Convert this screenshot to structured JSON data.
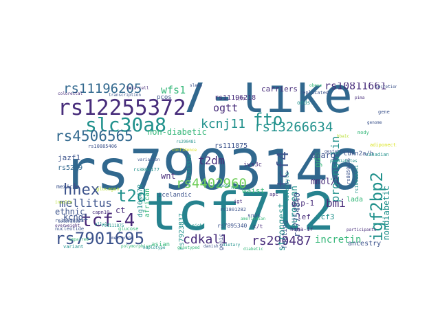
{
  "palette": {
    "dark_purple": "#472c7a",
    "purple": "#482878",
    "blue": "#3b528b",
    "steel_blue": "#31688e",
    "teal": "#21918c",
    "teal_blue": "#26828e",
    "green": "#35b779",
    "light_green": "#6ece58",
    "yellow_green": "#b5de2b",
    "yellow": "#d8e219"
  },
  "words": [
    {
      "text": "rs7903146",
      "color": "steel_blue"
    },
    {
      "text": "7-like",
      "color": "steel_blue"
    },
    {
      "text": "tcf7l2",
      "color": "teal_blue"
    },
    {
      "text": "rs12255372",
      "color": "dark_purple"
    },
    {
      "text": "slc30a8",
      "color": "teal"
    },
    {
      "text": "rs11196205",
      "color": "steel_blue"
    },
    {
      "text": "rs4506565",
      "color": "steel_blue"
    },
    {
      "text": "t2d",
      "color": "teal"
    },
    {
      "text": "tcf-4",
      "color": "purple"
    },
    {
      "text": "hhex",
      "color": "blue"
    },
    {
      "text": "mellitus",
      "color": "blue"
    },
    {
      "text": "rs7901695",
      "color": "blue"
    },
    {
      "text": "t2dm",
      "color": "dark_purple"
    },
    {
      "text": "kcnj11",
      "color": "teal"
    },
    {
      "text": "fto",
      "color": "teal"
    },
    {
      "text": "rs13266634",
      "color": "teal"
    },
    {
      "text": "rs4402960",
      "color": "light_green"
    },
    {
      "text": "cdkal1",
      "color": "dark_purple"
    },
    {
      "text": "rs290487",
      "color": "dark_purple"
    },
    {
      "text": "igf2bp2",
      "color": "teal"
    },
    {
      "text": "tcf4",
      "color": "blue"
    },
    {
      "text": "ogtt",
      "color": "dark_purple"
    },
    {
      "text": "wfs1",
      "color": "green"
    },
    {
      "text": "rs10811661",
      "color": "dark_purple"
    },
    {
      "text": "proinsulin",
      "color": "teal"
    },
    {
      "text": "nondiabetic",
      "color": "teal"
    },
    {
      "text": "bmi",
      "color": "dark_purple"
    },
    {
      "text": "incretin",
      "color": "green"
    },
    {
      "text": "european",
      "color": "teal"
    },
    {
      "text": "strongest",
      "color": "teal"
    },
    {
      "text": "rs7754840",
      "color": "blue"
    },
    {
      "text": "mmol/l",
      "color": "dark_purple"
    },
    {
      "text": "kcnq1",
      "color": "blue"
    },
    {
      "text": "non-diabetic",
      "color": "green"
    },
    {
      "text": "rs11196218",
      "color": "dark_purple"
    },
    {
      "text": "rs111875",
      "color": "blue"
    },
    {
      "text": "dg10s478",
      "color": "teal"
    },
    {
      "text": "wnt",
      "color": "dark_purple"
    },
    {
      "text": "gdm",
      "color": "green"
    },
    {
      "text": "pparg",
      "color": "blue"
    },
    {
      "text": "carriers",
      "color": "dark_purple"
    },
    {
      "text": "jazf1",
      "color": "blue"
    },
    {
      "text": "rs5219",
      "color": "steel_blue"
    },
    {
      "text": "ethnic",
      "color": "blue"
    },
    {
      "text": "ct",
      "color": "dark_purple"
    },
    {
      "text": "rs7923837",
      "color": "teal"
    },
    {
      "text": "fasting",
      "color": "blue"
    },
    {
      "text": "glp-1",
      "color": "dark_purple"
    },
    {
      "text": "lef",
      "color": "dark_purple"
    },
    {
      "text": "tcf3",
      "color": "teal"
    },
    {
      "text": "ancestry",
      "color": "blue"
    },
    {
      "text": "waist",
      "color": "green"
    },
    {
      "text": "lada",
      "color": "green"
    },
    {
      "text": "cdkn2a/b",
      "color": "blue"
    },
    {
      "text": "pcos",
      "color": "blue"
    },
    {
      "text": "african",
      "color": "green"
    },
    {
      "text": "mexican",
      "color": "blue"
    },
    {
      "text": "asian",
      "color": "green"
    },
    {
      "text": "insulinogenic",
      "color": "blue"
    },
    {
      "text": "ivs3c",
      "color": "dark_purple"
    },
    {
      "text": "homa-ir",
      "color": "dark_purple"
    },
    {
      "text": "rs7895340",
      "color": "blue"
    },
    {
      "text": "icelandic",
      "color": "blue"
    },
    {
      "text": "rs12243326",
      "color": "teal"
    },
    {
      "text": "snps",
      "color": "blue"
    },
    {
      "text": "c/t",
      "color": "dark_purple"
    },
    {
      "text": "odds",
      "color": "teal"
    },
    {
      "text": "replicated",
      "color": "blue"
    },
    {
      "text": "gene",
      "color": "blue"
    },
    {
      "text": "lifestyle",
      "color": "teal"
    },
    {
      "text": "rs8050136",
      "color": "blue"
    },
    {
      "text": "rs10010131",
      "color": "teal"
    },
    {
      "text": "rs1801282",
      "color": "blue"
    },
    {
      "text": "rs10830963",
      "color": "blue"
    },
    {
      "text": "rs10885406",
      "color": "blue"
    },
    {
      "text": "rs3802177",
      "color": "teal"
    },
    {
      "text": "capn10",
      "color": "dark_purple"
    },
    {
      "text": "nucleotide",
      "color": "blue"
    },
    {
      "text": "variant",
      "color": "teal"
    },
    {
      "text": "glucagon",
      "color": "yellow_green"
    },
    {
      "text": "glucose",
      "color": "green"
    },
    {
      "text": "gestational",
      "color": "blue"
    },
    {
      "text": "prediabetes",
      "color": "teal"
    },
    {
      "text": "pima",
      "color": "dark_purple"
    },
    {
      "text": "mody",
      "color": "green"
    },
    {
      "text": "adiponectin",
      "color": "yellow"
    },
    {
      "text": "canadian",
      "color": "teal"
    },
    {
      "text": "danish",
      "color": "blue"
    },
    {
      "text": "ntdm",
      "color": "green"
    },
    {
      "text": "igt",
      "color": "dark_purple"
    },
    {
      "text": "apc",
      "color": "dark_purple"
    },
    {
      "text": "rs6769511",
      "color": "dark_purple"
    },
    {
      "text": "rs290481",
      "color": "teal"
    },
    {
      "text": "insulin",
      "color": "yellow_green"
    },
    {
      "text": "impaired",
      "color": "green"
    },
    {
      "text": "variation",
      "color": "blue"
    },
    {
      "text": "tolerance",
      "color": "blue"
    },
    {
      "text": "overweight",
      "color": "dark_purple"
    },
    {
      "text": "confidence",
      "color": "yellow"
    },
    {
      "text": "genotyped",
      "color": "green"
    },
    {
      "text": "allele",
      "color": "teal"
    },
    {
      "text": "genome",
      "color": "blue"
    },
    {
      "text": "obese",
      "color": "green"
    },
    {
      "text": "sleep",
      "color": "blue"
    },
    {
      "text": "adipose",
      "color": "teal"
    },
    {
      "text": "polymorphism",
      "color": "green"
    },
    {
      "text": "dietary",
      "color": "teal"
    },
    {
      "text": "beta-cell",
      "color": "dark_purple"
    },
    {
      "text": "transcription",
      "color": "blue"
    },
    {
      "text": "colorectal",
      "color": "dark_purple"
    },
    {
      "text": "participants",
      "color": "dark_purple"
    },
    {
      "text": "haplotype",
      "color": "teal"
    },
    {
      "text": "amerindian",
      "color": "green"
    },
    {
      "text": "hba1c",
      "color": "yellow_green"
    },
    {
      "text": "weight",
      "color": "teal"
    },
    {
      "text": "metformin",
      "color": "blue"
    },
    {
      "text": "tcf7",
      "color": "dark_purple"
    },
    {
      "text": "diabetic",
      "color": "green"
    },
    {
      "text": "rs1111875",
      "color": "teal"
    },
    {
      "text": "secretion",
      "color": "blue"
    }
  ]
}
